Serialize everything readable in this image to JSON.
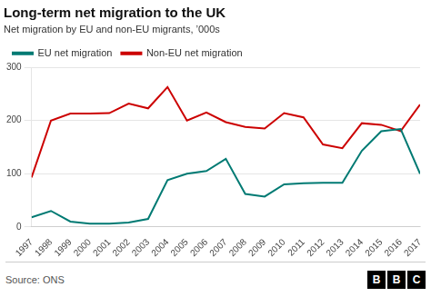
{
  "chart_data": {
    "type": "line",
    "title": "Long-term net migration to the UK",
    "subtitle": "Net migration by EU and non-EU migrants, ’000s",
    "annotations": [
      "Source: ONS",
      "BBC"
    ],
    "x": [
      1997,
      1998,
      1999,
      2000,
      2001,
      2002,
      2003,
      2004,
      2005,
      2006,
      2007,
      2008,
      2009,
      2010,
      2011,
      2012,
      2013,
      2014,
      2015,
      2016,
      2017
    ],
    "series": [
      {
        "name": "EU net migration",
        "color": "#007a73",
        "values": [
          18,
          30,
          10,
          6,
          6,
          8,
          15,
          88,
          100,
          105,
          128,
          62,
          57,
          80,
          82,
          83,
          83,
          143,
          180,
          184,
          100
        ]
      },
      {
        "name": "Non-EU net migration",
        "color": "#cc0000",
        "values": [
          93,
          200,
          213,
          213,
          214,
          232,
          223,
          263,
          200,
          215,
          197,
          188,
          185,
          214,
          206,
          155,
          148,
          195,
          192,
          180,
          230
        ]
      }
    ],
    "xlim": [
      1997,
      2017
    ],
    "xticks": [
      1997,
      1998,
      1999,
      2000,
      2001,
      2002,
      2003,
      2004,
      2005,
      2006,
      2007,
      2008,
      2009,
      2010,
      2011,
      2012,
      2013,
      2014,
      2015,
      2016,
      2017
    ],
    "ylim": [
      0,
      300
    ],
    "yticks": [
      0,
      100,
      200,
      300
    ],
    "grid": true,
    "legend": "upper left"
  }
}
